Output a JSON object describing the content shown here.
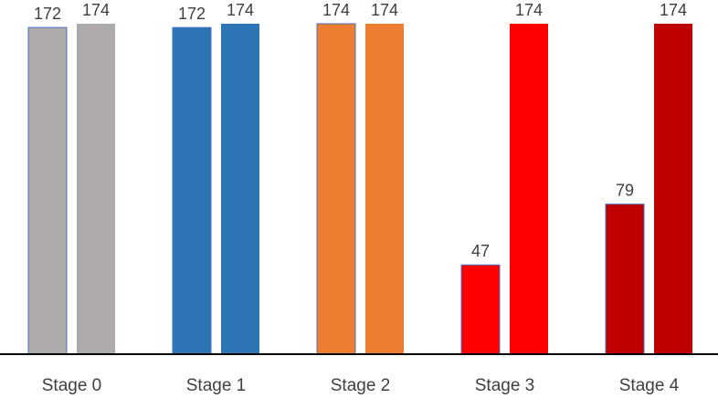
{
  "chart_data": {
    "type": "bar",
    "categories": [
      "Stage 0",
      "Stage 1",
      "Stage 2",
      "Stage 3",
      "Stage 4"
    ],
    "series": [
      {
        "values": [
          172,
          172,
          174,
          47,
          79
        ]
      },
      {
        "values": [
          174,
          174,
          174,
          174,
          174
        ]
      }
    ],
    "colors": {
      "first_bars": [
        "#AEAAAA",
        "#2E75B6",
        "#ED7D31",
        "#FF0000",
        "#C00000"
      ],
      "second_bars": [
        "#AEAAAA",
        "#2E75B6",
        "#ED7D31",
        "#FF0000",
        "#C00000"
      ],
      "first_bar_outline": "#4472C4",
      "axis": "#000000"
    },
    "title": "",
    "xlabel": "",
    "ylabel": "",
    "ylim": [
      0,
      174
    ],
    "grid": false,
    "data_labels": true
  }
}
